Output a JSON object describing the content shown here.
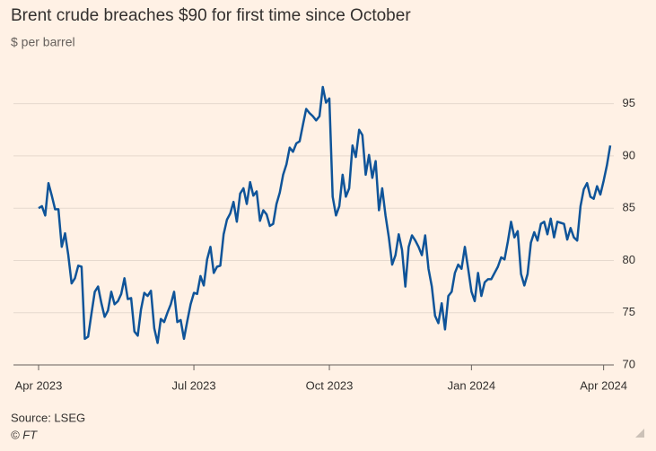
{
  "chart_data": {
    "type": "line",
    "title": "Brent crude breaches $90 for first time since October",
    "subtitle": "$ per barrel",
    "source": "Source: LSEG",
    "credit": "© FT",
    "categories": [
      "Apr 2023",
      null,
      null,
      null,
      null,
      null,
      null,
      null,
      null,
      null,
      null,
      null,
      null,
      null,
      null,
      null,
      null,
      null,
      null,
      null,
      null,
      null,
      null,
      null,
      null,
      null,
      null,
      null,
      null,
      null,
      null,
      null,
      null,
      null,
      null,
      null,
      null,
      null,
      null,
      null,
      null,
      null,
      null,
      null,
      null,
      null,
      null,
      "Jul 2023",
      null,
      null,
      null,
      null,
      null,
      null,
      null,
      null,
      null,
      null,
      null,
      null,
      null,
      null,
      null,
      null,
      null,
      null,
      null,
      null,
      null,
      null,
      null,
      null,
      null,
      null,
      null,
      null,
      null,
      null,
      null,
      null,
      null,
      null,
      null,
      null,
      null,
      null,
      null,
      null,
      "Oct 2023",
      null,
      null,
      null,
      null,
      null,
      null,
      null,
      null,
      null,
      null,
      null,
      null,
      null,
      null,
      null,
      null,
      null,
      null,
      null,
      null,
      null,
      null,
      null,
      null,
      null,
      null,
      null,
      null,
      null,
      null,
      null,
      null,
      null,
      null,
      null,
      null,
      null,
      null,
      null,
      null,
      null,
      null,
      "Jan 2024",
      null,
      null,
      null,
      null,
      null,
      null,
      null,
      null,
      null,
      null,
      null,
      null,
      null,
      null,
      null,
      null,
      null,
      null,
      null,
      null,
      null,
      null,
      null,
      null,
      null,
      null,
      null,
      null,
      null,
      null,
      null,
      null,
      null,
      null,
      null,
      null,
      null,
      null,
      null,
      "Apr 2024",
      null,
      null
    ],
    "series": [
      {
        "name": "Brent crude",
        "color": "#0f5499",
        "values": [
          85.0,
          85.2,
          84.3,
          87.4,
          86.2,
          84.9,
          84.9,
          81.3,
          82.6,
          80.5,
          77.8,
          78.3,
          79.5,
          79.4,
          72.5,
          72.7,
          74.9,
          77.0,
          77.5,
          75.9,
          74.6,
          75.2,
          77.0,
          75.8,
          76.1,
          76.8,
          78.3,
          76.3,
          76.4,
          73.2,
          72.8,
          75.3,
          76.9,
          76.6,
          77.1,
          73.5,
          72.1,
          74.4,
          74.1,
          75.0,
          75.8,
          77.0,
          74.1,
          74.3,
          72.5,
          74.2,
          75.8,
          76.9,
          76.8,
          78.5,
          77.6,
          80.1,
          81.3,
          78.8,
          79.4,
          79.5,
          82.5,
          83.9,
          84.5,
          85.6,
          83.7,
          86.4,
          86.9,
          85.4,
          87.5,
          86.2,
          86.6,
          83.8,
          84.8,
          84.4,
          83.3,
          83.5,
          85.4,
          86.5,
          88.2,
          89.2,
          90.8,
          90.4,
          91.2,
          91.4,
          93.0,
          94.5,
          94.1,
          93.8,
          93.4,
          93.8,
          96.6,
          95.1,
          95.5,
          86.1,
          84.3,
          85.2,
          88.2,
          86.1,
          86.9,
          91.0,
          89.9,
          92.5,
          92.0,
          88.2,
          90.1,
          87.9,
          89.5,
          84.8,
          86.9,
          84.3,
          82.2,
          79.6,
          80.5,
          82.5,
          81.0,
          77.5,
          81.3,
          82.4,
          81.9,
          81.3,
          80.5,
          82.4,
          79.2,
          77.5,
          74.7,
          74.0,
          75.9,
          73.4,
          76.6,
          77.0,
          78.8,
          79.6,
          79.2,
          81.3,
          79.2,
          77.0,
          76.1,
          78.8,
          76.6,
          77.9,
          78.2,
          78.2,
          78.8,
          79.4,
          80.3,
          80.1,
          81.8,
          83.7,
          82.2,
          82.8,
          78.7,
          77.6,
          78.7,
          81.7,
          82.7,
          81.9,
          83.5,
          83.7,
          82.5,
          84.0,
          82.2,
          83.7,
          83.6,
          83.5,
          82.0,
          83.1,
          82.2,
          81.9,
          85.2,
          86.8,
          87.4,
          86.1,
          85.9,
          87.1,
          86.3,
          87.6,
          89.1,
          91.0
        ]
      }
    ],
    "ylim": [
      70,
      96.6
    ],
    "yticks": [
      70,
      75,
      80,
      85,
      90,
      95
    ],
    "grid": true
  }
}
